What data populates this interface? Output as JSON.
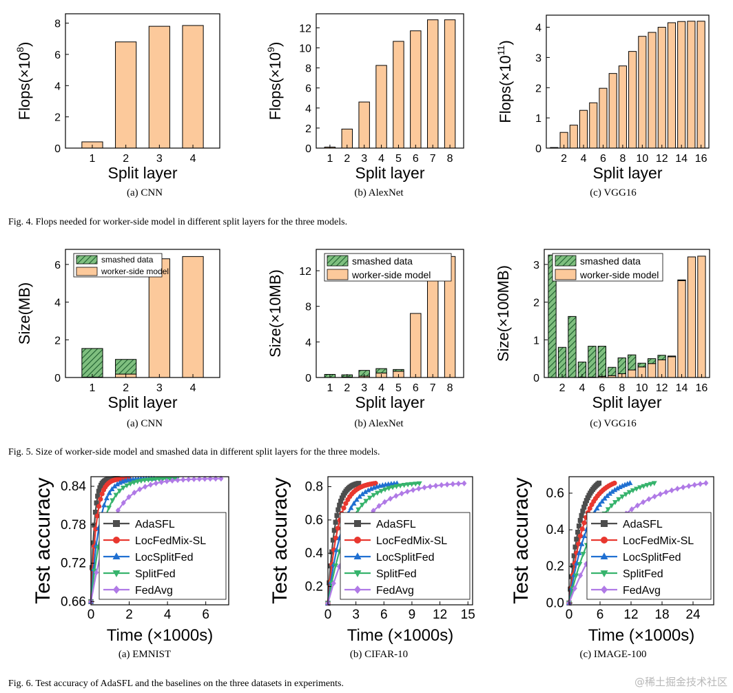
{
  "figures": [
    {
      "caption": "Fig. 4.   Flops needed for worker-side model in different split layers for the three models."
    },
    {
      "caption": "Fig. 5.   Size of worker-side model and smashed data in different split layers for the three models."
    },
    {
      "caption": "Fig. 6.   Test accuracy of AdaSFL and the baselines on the three datasets in experiments."
    }
  ],
  "watermark": "@稀土掘金技术社区",
  "colors": {
    "orange": "#fcc99b",
    "green": "#7fbf7f",
    "stroke": "#000000",
    "AdaSFL": "#4d4d4d",
    "LocFedMix-SL": "#e8372f",
    "LocSplitFed": "#1f6fd1",
    "SplitFed": "#36b36c",
    "FedAvg": "#b07ae6"
  },
  "chart_data": [
    {
      "type": "bar",
      "subcaption": "(a)  CNN",
      "ylabel_base": "Flops(×10",
      "ylabel_exp": "8",
      "ylabel_close": ")",
      "xlabel": "Split layer",
      "categories": [
        1,
        2,
        3,
        4
      ],
      "values": [
        0.4,
        6.8,
        7.8,
        7.85
      ],
      "ylim": [
        0,
        8.6
      ],
      "yticks": [
        0,
        2,
        4,
        6,
        8
      ],
      "xticks": [
        1,
        2,
        3,
        4
      ]
    },
    {
      "type": "bar",
      "subcaption": "(b)  AlexNet",
      "ylabel_base": "Flops(×10",
      "ylabel_exp": "9",
      "ylabel_close": ")",
      "xlabel": "Split layer",
      "categories": [
        1,
        2,
        3,
        4,
        5,
        6,
        7,
        8
      ],
      "values": [
        0.1,
        1.9,
        4.6,
        8.25,
        10.65,
        11.7,
        12.8,
        12.8
      ],
      "ylim": [
        0,
        13.4
      ],
      "yticks": [
        0,
        2,
        4,
        6,
        8,
        10,
        12
      ],
      "xticks": [
        1,
        2,
        3,
        4,
        5,
        6,
        7,
        8
      ]
    },
    {
      "type": "bar",
      "subcaption": "(c)  VGG16",
      "ylabel_base": "Flops(×10",
      "ylabel_exp": "11",
      "ylabel_close": ")",
      "xlabel": "Split layer",
      "categories": [
        1,
        2,
        3,
        4,
        5,
        6,
        7,
        8,
        9,
        10,
        11,
        12,
        13,
        14,
        15,
        16
      ],
      "values": [
        0.02,
        0.52,
        0.76,
        1.25,
        1.5,
        1.98,
        2.47,
        2.72,
        3.2,
        3.7,
        3.83,
        4.0,
        4.15,
        4.19,
        4.2,
        4.2
      ],
      "ylim": [
        0,
        4.4
      ],
      "yticks": [
        0,
        1,
        2,
        3,
        4
      ],
      "xticks": [
        2,
        4,
        6,
        8,
        10,
        12,
        14,
        16
      ]
    },
    {
      "type": "stacked-bar",
      "subcaption": "(a)  CNN",
      "ylabel": "Size(MB)",
      "xlabel": "Split layer",
      "categories": [
        1,
        2,
        3,
        4
      ],
      "series": [
        {
          "name": "worker-side model",
          "values": [
            0.02,
            0.18,
            6.3,
            6.42
          ]
        },
        {
          "name": "smashed data",
          "values": [
            1.52,
            0.78,
            0.0,
            0.0
          ]
        }
      ],
      "ylim": [
        0,
        6.8
      ],
      "yticks": [
        0,
        2,
        4,
        6
      ],
      "xticks": [
        1,
        2,
        3,
        4
      ],
      "legend": "top-left"
    },
    {
      "type": "stacked-bar",
      "subcaption": "(b)  AlexNet",
      "ylabel": "Size(×10MB)",
      "xlabel": "Split layer",
      "categories": [
        1,
        2,
        3,
        4,
        5,
        6,
        7,
        8
      ],
      "series": [
        {
          "name": "worker-side model",
          "values": [
            0.0,
            0.05,
            0.15,
            0.5,
            0.7,
            7.2,
            13.6,
            13.6
          ]
        },
        {
          "name": "smashed data",
          "values": [
            0.35,
            0.25,
            0.65,
            0.5,
            0.2,
            0.0,
            0.0,
            0.0
          ]
        }
      ],
      "ylim": [
        0,
        14.4
      ],
      "yticks": [
        0,
        4,
        8,
        12
      ],
      "xticks": [
        1,
        2,
        3,
        4,
        5,
        6,
        7,
        8
      ],
      "legend": "top-left"
    },
    {
      "type": "stacked-bar",
      "subcaption": "(c)  VGG16",
      "ylabel": "Size(×100MB)",
      "xlabel": "Split layer",
      "categories": [
        1,
        2,
        3,
        4,
        5,
        6,
        7,
        8,
        9,
        10,
        11,
        12,
        13,
        14,
        15,
        16
      ],
      "series": [
        {
          "name": "worker-side model",
          "values": [
            0.0,
            0.0,
            0.0,
            0.01,
            0.01,
            0.03,
            0.05,
            0.1,
            0.2,
            0.28,
            0.37,
            0.47,
            0.55,
            2.57,
            3.2,
            3.22
          ]
        },
        {
          "name": "smashed data",
          "values": [
            3.25,
            0.8,
            1.62,
            0.4,
            0.82,
            0.8,
            0.22,
            0.42,
            0.4,
            0.1,
            0.13,
            0.12,
            0.02,
            0.02,
            0.0,
            0.0
          ]
        }
      ],
      "ylim": [
        0,
        3.4
      ],
      "yticks": [
        0,
        1,
        2,
        3
      ],
      "xticks": [
        2,
        4,
        6,
        8,
        10,
        12,
        14,
        16
      ],
      "legend": "top-left"
    },
    {
      "type": "line",
      "subcaption": "(a)  EMNIST",
      "ylabel": "Test accuracy",
      "xlabel": "Time (×1000s)",
      "xlim": [
        0,
        7.2
      ],
      "ylim": [
        0.655,
        0.855
      ],
      "xticks": [
        0,
        2,
        4,
        6
      ],
      "yticks": [
        0.66,
        0.72,
        0.78,
        0.84
      ],
      "ytick_labels": [
        "0.66",
        "0.72",
        "0.78",
        "0.84"
      ],
      "series": [
        {
          "name": "AdaSFL",
          "marker": "square",
          "t_end": 1.4,
          "y0": 0.66,
          "y_end": 0.852,
          "tau": 0.18
        },
        {
          "name": "LocFedMix-SL",
          "marker": "circle",
          "t_end": 2.0,
          "y0": 0.66,
          "y_end": 0.852,
          "tau": 0.28
        },
        {
          "name": "LocSplitFed",
          "marker": "triangle-up",
          "t_end": 3.3,
          "y0": 0.66,
          "y_end": 0.852,
          "tau": 0.45
        },
        {
          "name": "SplitFed",
          "marker": "triangle-down",
          "t_end": 4.5,
          "y0": 0.66,
          "y_end": 0.852,
          "tau": 0.65
        },
        {
          "name": "FedAvg",
          "marker": "diamond",
          "t_end": 6.8,
          "y0": 0.66,
          "y_end": 0.852,
          "tau": 1.05
        }
      ],
      "legend": "lower-right"
    },
    {
      "type": "line",
      "subcaption": "(b)  CIFAR-10",
      "ylabel": "Test accuracy",
      "xlabel": "Time (×1000s)",
      "xlim": [
        0,
        15.5
      ],
      "ylim": [
        0.09,
        0.86
      ],
      "xticks": [
        0,
        3,
        6,
        9,
        12,
        15
      ],
      "yticks": [
        0.2,
        0.4,
        0.6,
        0.8
      ],
      "ytick_labels": [
        "0.2",
        "0.4",
        "0.6",
        "0.8"
      ],
      "series": [
        {
          "name": "AdaSFL",
          "marker": "square",
          "t_end": 3.3,
          "y0": 0.1,
          "y_end": 0.82,
          "tau": 0.75
        },
        {
          "name": "LocFedMix-SL",
          "marker": "circle",
          "t_end": 5.1,
          "y0": 0.1,
          "y_end": 0.82,
          "tau": 1.1
        },
        {
          "name": "LocSplitFed",
          "marker": "triangle-up",
          "t_end": 7.4,
          "y0": 0.1,
          "y_end": 0.82,
          "tau": 1.6
        },
        {
          "name": "SplitFed",
          "marker": "triangle-down",
          "t_end": 9.8,
          "y0": 0.1,
          "y_end": 0.82,
          "tau": 2.2
        },
        {
          "name": "FedAvg",
          "marker": "diamond",
          "t_end": 14.6,
          "y0": 0.1,
          "y_end": 0.82,
          "tau": 3.4
        }
      ],
      "legend": "lower-right"
    },
    {
      "type": "line",
      "subcaption": "(c)  IMAGE-100",
      "ylabel": "Test accuracy",
      "xlabel": "Time (×1000s)",
      "xlim": [
        0,
        28
      ],
      "ylim": [
        -0.01,
        0.69
      ],
      "xticks": [
        0,
        6,
        12,
        18,
        24
      ],
      "yticks": [
        0.0,
        0.2,
        0.4,
        0.6
      ],
      "ytick_labels": [
        "0.0",
        "0.2",
        "0.4",
        "0.6"
      ],
      "series": [
        {
          "name": "AdaSFL",
          "marker": "square",
          "t_end": 5.8,
          "y0": 0.0,
          "y_end": 0.655,
          "tau": 2.1
        },
        {
          "name": "LocFedMix-SL",
          "marker": "circle",
          "t_end": 8.8,
          "y0": 0.0,
          "y_end": 0.655,
          "tau": 2.9
        },
        {
          "name": "LocSplitFed",
          "marker": "triangle-up",
          "t_end": 11.8,
          "y0": 0.0,
          "y_end": 0.655,
          "tau": 3.9
        },
        {
          "name": "SplitFed",
          "marker": "triangle-down",
          "t_end": 16.5,
          "y0": 0.0,
          "y_end": 0.655,
          "tau": 5.6
        },
        {
          "name": "FedAvg",
          "marker": "diamond",
          "t_end": 26.5,
          "y0": 0.0,
          "y_end": 0.655,
          "tau": 9.0
        }
      ],
      "legend": "lower-right"
    }
  ]
}
